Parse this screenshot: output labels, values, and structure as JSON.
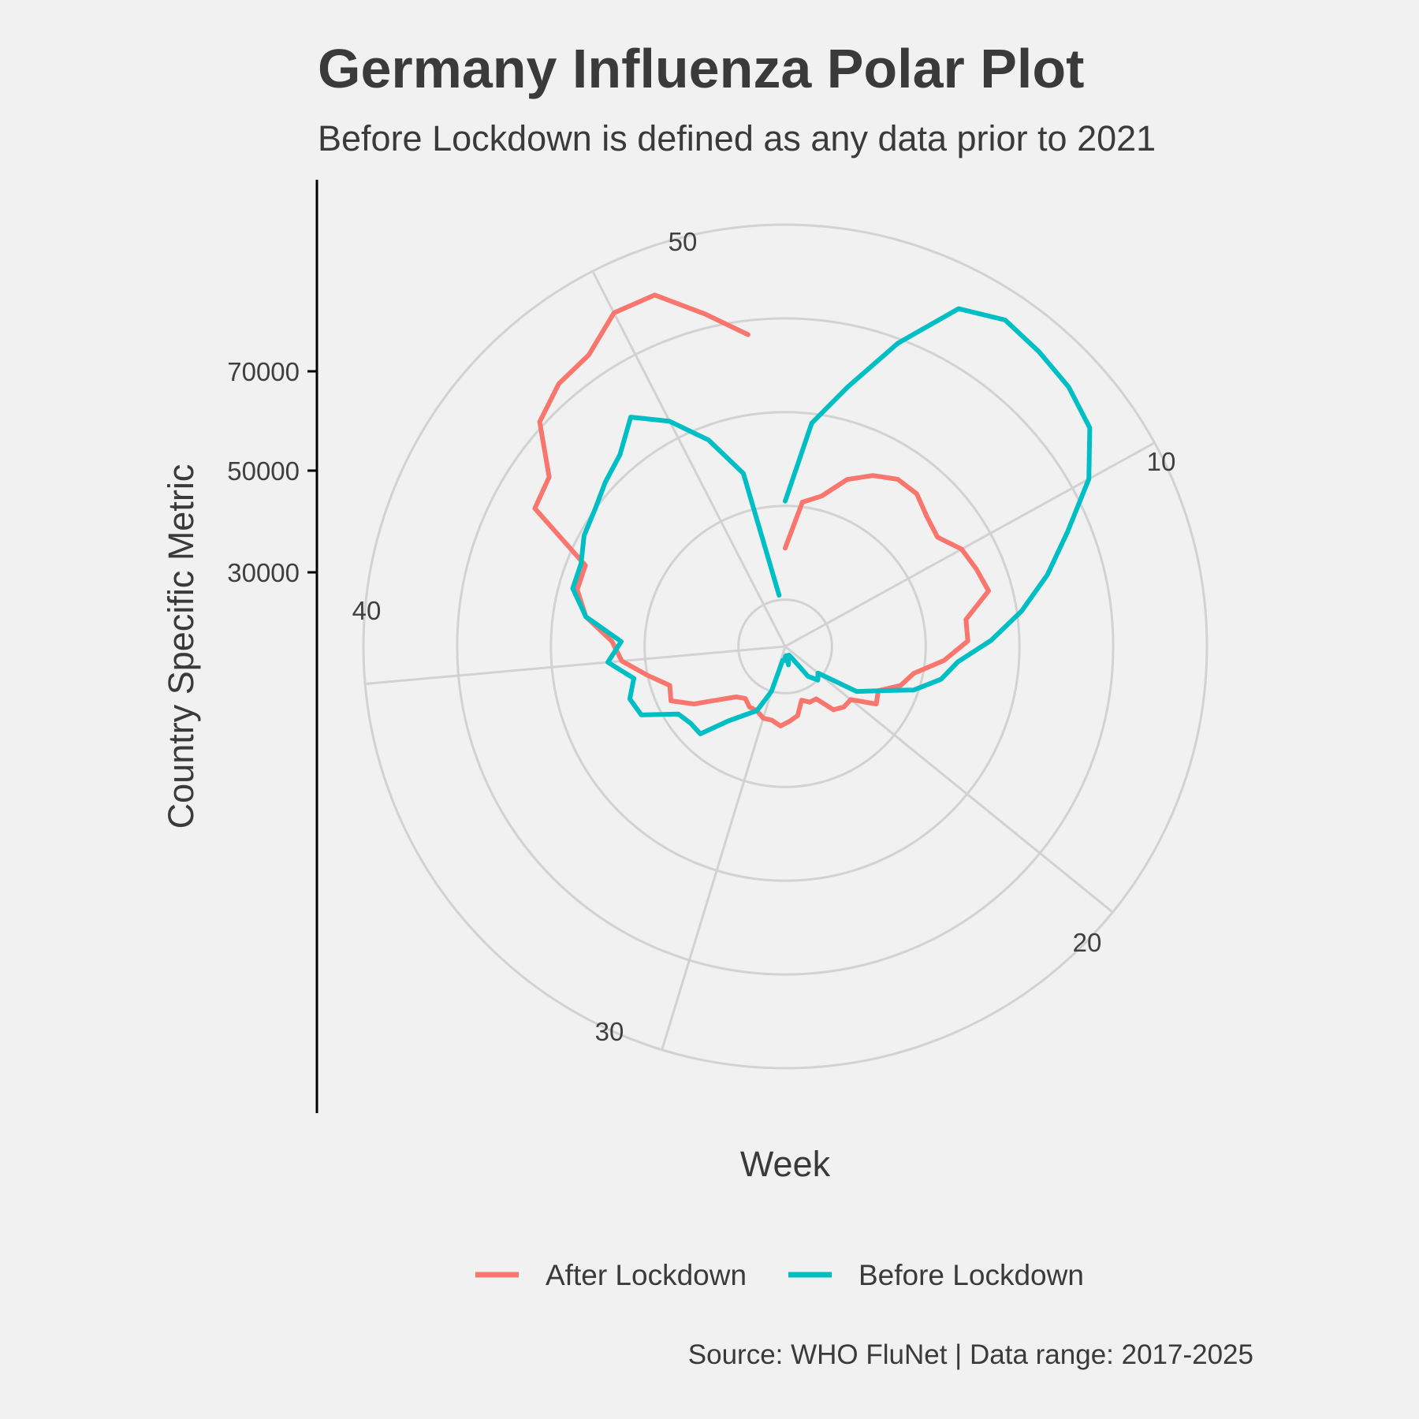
{
  "chart_data": {
    "type": "line",
    "coordinate_system": "polar",
    "title": "Germany Influenza Polar Plot",
    "subtitle": "Before Lockdown is defined as any data prior to 2021",
    "caption": "Source: WHO FluNet | Data range: 2017-2025",
    "xlabel": "Week",
    "ylabel": "Country Specific Metric",
    "x_ticks": [
      "10",
      "20",
      "30",
      "40",
      "50"
    ],
    "y_ticks": [
      "30000",
      "50000",
      "70000"
    ],
    "grid_rings": [
      10000,
      30000,
      50000,
      70000,
      90000
    ],
    "xlim": [
      1,
      53
    ],
    "ylim": [
      0,
      90000
    ],
    "legend_position": "bottom",
    "series": [
      {
        "name": "After Lockdown",
        "color": "#f8766d",
        "x": [
          1,
          2,
          3,
          4,
          5,
          6,
          7,
          8,
          9,
          10,
          11,
          12,
          13,
          14,
          15,
          16,
          17,
          18,
          19,
          20,
          21,
          22,
          23,
          24,
          25,
          26,
          27,
          28,
          29,
          30,
          31,
          32,
          33,
          34,
          35,
          36,
          37,
          38,
          39,
          40,
          41,
          42,
          43,
          44,
          45,
          46,
          47,
          48,
          49,
          50,
          51,
          52,
          53
        ],
        "values": [
          21000,
          31000,
          33000,
          38000,
          41000,
          43000,
          43000,
          41000,
          40000,
          43000,
          44000,
          45000,
          39000,
          39000,
          34000,
          28000,
          26000,
          22000,
          23000,
          18000,
          18000,
          17000,
          13000,
          13000,
          12000,
          15000,
          16000,
          17000,
          16000,
          16000,
          15000,
          15000,
          14000,
          15000,
          18000,
          23000,
          27000,
          26000,
          30000,
          35000,
          37000,
          43000,
          46000,
          46000,
          61000,
          62000,
          71000,
          74000,
          75000,
          80000,
          80000,
          73000,
          67000
        ]
      },
      {
        "name": "Before Lockdown",
        "color": "#00bfc4",
        "x": [
          1,
          2,
          3,
          4,
          5,
          6,
          7,
          8,
          9,
          10,
          11,
          12,
          13,
          14,
          15,
          16,
          17,
          18,
          19,
          20,
          21,
          22,
          23,
          24,
          25,
          26,
          27,
          28,
          29,
          30,
          31,
          32,
          33,
          34,
          35,
          36,
          37,
          38,
          39,
          40,
          41,
          42,
          43,
          44,
          45,
          46,
          47,
          48,
          49,
          50,
          51,
          52,
          53
        ],
        "values": [
          31000,
          48000,
          57000,
          69000,
          81000,
          84000,
          83000,
          82000,
          80000,
          74000,
          65000,
          58000,
          51000,
          44000,
          37000,
          34000,
          29000,
          22000,
          18000,
          9000,
          10000,
          8000,
          3000,
          2000,
          2000,
          4000,
          2000,
          3000,
          3000,
          10000,
          15000,
          17000,
          20000,
          26000,
          26000,
          27000,
          34000,
          35000,
          33000,
          38000,
          35000,
          43000,
          47000,
          47000,
          49000,
          50000,
          52000,
          54000,
          59000,
          54000,
          47000,
          38000,
          11000
        ]
      }
    ]
  }
}
